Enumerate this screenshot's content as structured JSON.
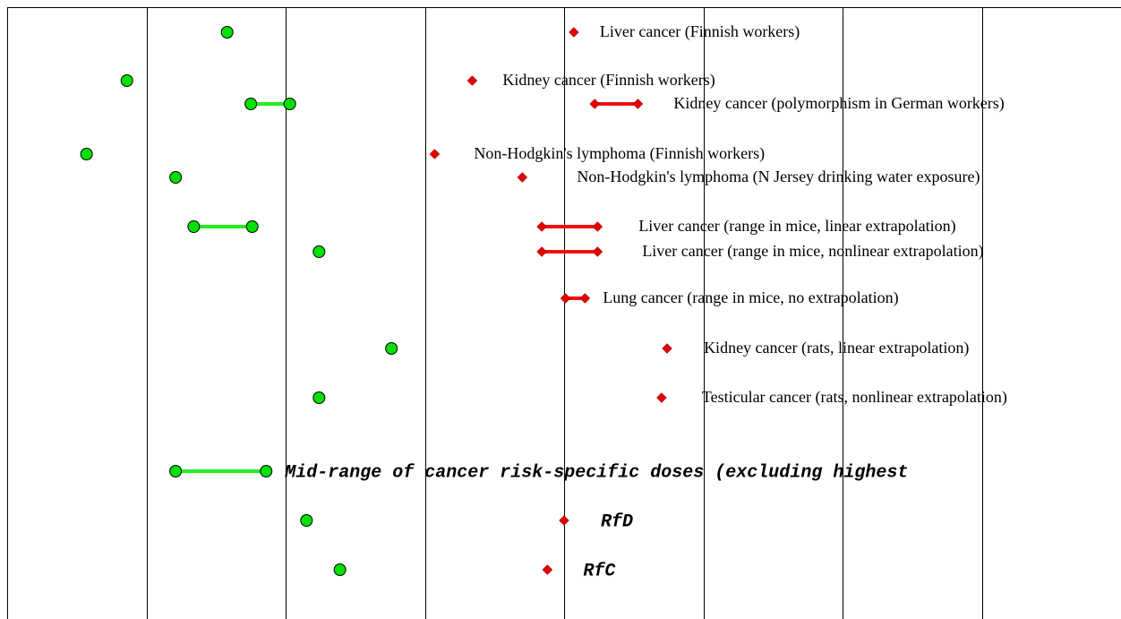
{
  "chart_data": {
    "type": "range-dot",
    "xlim": [
      0,
      8
    ],
    "xticks": [
      1,
      2,
      3,
      4,
      5,
      6,
      7
    ],
    "grid": true,
    "categories": [
      "Liver cancer (Finnish workers)",
      "Kidney cancer (Finnish workers)",
      "Kidney cancer (polymorphism in German workers)",
      "Non-Hodgkin's lymphoma (Finnish workers)",
      "Non-Hodgkin's lymphoma (N Jersey drinking water exposure)",
      "Liver cancer (range in mice, linear extrapolation)",
      "Liver cancer (range in mice, nonlinear extrapolation)",
      "Lung cancer (range in mice, no extrapolation)",
      "Kidney cancer (rats, linear extrapolation)",
      "Testicular cancer (rats, nonlinear extrapolation)",
      "Mid-range of cancer risk-specific doses (excluding highest",
      "RfD",
      "RfC"
    ],
    "emphasis": [
      false,
      false,
      false,
      false,
      false,
      false,
      false,
      false,
      false,
      false,
      true,
      true,
      true
    ],
    "series": [
      {
        "color": "#00e000",
        "marker": "circle",
        "low": [
          1.58,
          0.86,
          1.75,
          0.57,
          1.21,
          1.34,
          2.24,
          null,
          2.76,
          2.24,
          1.21,
          2.15,
          2.39
        ],
        "high": [
          null,
          null,
          2.03,
          null,
          null,
          1.76,
          null,
          null,
          null,
          null,
          1.86,
          null,
          null
        ]
      },
      {
        "color": "#e00000",
        "marker": "diamond",
        "low": [
          4.07,
          3.34,
          4.22,
          3.07,
          3.7,
          3.84,
          3.84,
          4.01,
          4.74,
          4.7,
          null,
          4.0,
          3.88
        ],
        "high": [
          null,
          null,
          4.53,
          null,
          null,
          4.24,
          4.24,
          4.15,
          null,
          null,
          null,
          null,
          null
        ]
      }
    ]
  }
}
